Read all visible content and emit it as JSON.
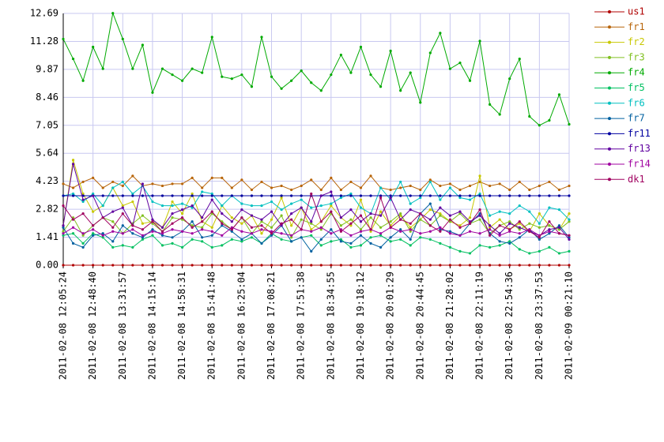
{
  "chart_data": {
    "type": "line",
    "grid": true,
    "legend": "right",
    "markers": true,
    "categories": [
      "2011-02-08 12:05:24",
      null,
      null,
      "2011-02-08 12:48:40",
      null,
      null,
      "2011-02-08 13:31:57",
      null,
      null,
      "2011-02-08 14:15:14",
      null,
      null,
      "2011-02-08 14:58:31",
      null,
      null,
      "2011-02-08 15:41:48",
      null,
      null,
      "2011-02-08 16:25:04",
      null,
      null,
      "2011-02-08 17:08:21",
      null,
      null,
      "2011-02-08 17:51:38",
      null,
      null,
      "2011-02-08 18:34:55",
      null,
      null,
      "2011-02-08 19:18:12",
      null,
      null,
      "2011-02-08 20:01:29",
      null,
      null,
      "2011-02-08 20:44:45",
      null,
      null,
      "2011-02-08 21:28:02",
      null,
      null,
      "2011-02-08 22:11:19",
      null,
      null,
      "2011-02-08 22:54:36",
      null,
      null,
      "2011-02-08 23:37:53",
      null,
      null,
      "2011-02-09 00:21:10"
    ],
    "ylim": [
      0,
      12.69
    ],
    "yticks": [
      {
        "value": 0,
        "label": "0.00"
      },
      1.41,
      2.82,
      4.23,
      5.64,
      7.05,
      8.46,
      9.87,
      11.28,
      12.69
    ],
    "series": [
      {
        "name": "us1",
        "color": "#b00000",
        "values": [
          0,
          0,
          0,
          0,
          0,
          0,
          0,
          0,
          0,
          0,
          0,
          0,
          0,
          0,
          0,
          0,
          0,
          0,
          0,
          0,
          0,
          0,
          0,
          0,
          0,
          0,
          0,
          0,
          0,
          0,
          0,
          0,
          0,
          0,
          0,
          0,
          0,
          0,
          0,
          0,
          0,
          0,
          0,
          0,
          0,
          0,
          0,
          0,
          0,
          0,
          0,
          0
        ]
      },
      {
        "name": "fr1",
        "color": "#b8650a",
        "values": [
          4.1,
          3.9,
          4.2,
          4.4,
          3.9,
          4.2,
          4.0,
          4.5,
          4.0,
          4.1,
          4.0,
          4.1,
          4.1,
          4.4,
          3.9,
          4.4,
          4.4,
          3.9,
          4.3,
          3.8,
          4.2,
          3.9,
          4.0,
          3.8,
          4.0,
          4.3,
          3.8,
          4.4,
          3.8,
          4.2,
          3.9,
          4.5,
          3.9,
          3.8,
          3.9,
          4.0,
          3.8,
          4.3,
          4.0,
          4.1,
          3.8,
          4.0,
          4.2,
          4.0,
          4.1,
          3.8,
          4.2,
          3.8,
          4.0,
          4.2,
          3.8,
          4.0
        ]
      },
      {
        "name": "fr2",
        "color": "#c8c800",
        "values": [
          2.0,
          5.3,
          3.6,
          2.7,
          3.0,
          3.9,
          3.0,
          3.2,
          2.1,
          2.2,
          1.9,
          3.2,
          2.6,
          3.6,
          2.2,
          1.9,
          3.0,
          2.4,
          2.1,
          2.5,
          1.6,
          2.3,
          3.4,
          2.0,
          2.9,
          1.8,
          2.2,
          3.0,
          2.4,
          2.0,
          3.3,
          1.7,
          2.7,
          2.0,
          2.5,
          1.9,
          2.3,
          2.8,
          2.6,
          2.2,
          2.0,
          2.4,
          4.5,
          1.9,
          2.3,
          1.8,
          2.1,
          1.7,
          2.6,
          2.0,
          1.8,
          2.6
        ]
      },
      {
        "name": "fr3",
        "color": "#80c020",
        "values": [
          1.7,
          2.4,
          1.5,
          2.0,
          2.4,
          2.2,
          1.6,
          2.1,
          2.5,
          2.1,
          1.7,
          2.4,
          2.3,
          2.0,
          1.9,
          2.6,
          2.2,
          1.8,
          2.4,
          1.6,
          2.2,
          1.9,
          2.5,
          1.4,
          2.3,
          2.1,
          1.8,
          2.6,
          2.0,
          2.3,
          1.8,
          2.4,
          1.9,
          2.2,
          2.6,
          1.7,
          2.3,
          2.0,
          2.5,
          2.2,
          2.6,
          2.1,
          2.3,
          1.6,
          2.0,
          2.2,
          1.8,
          2.1,
          1.9,
          2.0,
          1.8,
          2.2
        ]
      },
      {
        "name": "fr4",
        "color": "#00aa00",
        "values": [
          11.4,
          10.4,
          9.3,
          11.0,
          9.9,
          12.7,
          11.4,
          9.9,
          11.1,
          8.7,
          9.9,
          9.6,
          9.3,
          9.9,
          9.7,
          11.5,
          9.5,
          9.4,
          9.6,
          9.0,
          11.5,
          9.5,
          8.9,
          9.3,
          9.8,
          9.2,
          8.8,
          9.6,
          10.6,
          9.7,
          11.0,
          9.6,
          9.0,
          10.8,
          8.8,
          9.7,
          8.2,
          10.7,
          11.7,
          9.9,
          10.2,
          9.3,
          11.3,
          8.1,
          7.6,
          9.4,
          10.4,
          7.5,
          7.05,
          7.3,
          8.6,
          7.1
        ]
      },
      {
        "name": "fr5",
        "color": "#00c060",
        "values": [
          1.5,
          1.6,
          1.1,
          1.6,
          1.4,
          0.9,
          1.0,
          0.9,
          1.3,
          1.5,
          1.0,
          1.1,
          0.9,
          1.3,
          1.2,
          0.9,
          1.0,
          1.3,
          1.2,
          1.4,
          1.1,
          1.6,
          1.3,
          1.2,
          1.4,
          1.5,
          1.0,
          1.2,
          1.3,
          0.9,
          1.0,
          1.4,
          1.5,
          1.2,
          1.3,
          1.0,
          1.4,
          1.3,
          1.1,
          0.9,
          0.7,
          0.6,
          1.0,
          0.9,
          1.0,
          1.2,
          0.8,
          0.6,
          0.7,
          0.9,
          0.6,
          0.7
        ]
      },
      {
        "name": "fr6",
        "color": "#00c0c0",
        "values": [
          3.5,
          3.6,
          3.2,
          3.6,
          3.0,
          3.9,
          4.2,
          3.6,
          4.0,
          3.2,
          3.0,
          3.0,
          3.1,
          2.9,
          3.7,
          3.6,
          3.0,
          3.5,
          3.1,
          3.0,
          3.0,
          3.2,
          2.8,
          3.1,
          3.3,
          2.9,
          3.0,
          3.1,
          3.4,
          3.6,
          2.9,
          2.6,
          3.9,
          3.3,
          4.2,
          3.1,
          3.4,
          4.2,
          3.3,
          3.9,
          3.4,
          3.3,
          3.6,
          2.5,
          2.7,
          2.6,
          3.0,
          2.7,
          2.1,
          2.9,
          2.8,
          2.3
        ]
      },
      {
        "name": "fr7",
        "color": "#0060a0",
        "values": [
          1.9,
          1.1,
          0.9,
          1.5,
          1.6,
          1.2,
          2.0,
          1.6,
          1.4,
          1.8,
          1.5,
          1.4,
          1.7,
          2.2,
          1.4,
          1.5,
          2.0,
          1.7,
          1.3,
          1.6,
          1.1,
          1.5,
          2.0,
          1.2,
          1.4,
          0.7,
          1.3,
          1.8,
          1.2,
          1.1,
          1.5,
          1.1,
          0.9,
          1.4,
          1.8,
          1.3,
          2.6,
          3.1,
          1.8,
          1.7,
          1.5,
          2.1,
          2.6,
          1.6,
          1.2,
          1.1,
          1.4,
          1.8,
          1.3,
          1.6,
          2.0,
          1.4
        ]
      },
      {
        "name": "fr11",
        "color": "#0000a0",
        "values": [
          3.5,
          3.5,
          3.5,
          3.5,
          3.5,
          3.5,
          3.5,
          3.5,
          3.5,
          3.5,
          3.5,
          3.5,
          3.5,
          3.5,
          3.5,
          3.5,
          3.5,
          3.5,
          3.5,
          3.5,
          3.5,
          3.5,
          3.5,
          3.5,
          3.5,
          3.5,
          3.5,
          3.5,
          3.5,
          3.5,
          3.5,
          3.5,
          3.5,
          3.5,
          3.5,
          3.5,
          3.5,
          3.5,
          3.5,
          3.5,
          3.5,
          3.5,
          3.5,
          3.5,
          3.5,
          3.5,
          3.5,
          3.5,
          3.5,
          3.5,
          3.5,
          3.5
        ]
      },
      {
        "name": "fr13",
        "color": "#6000a0",
        "values": [
          2.0,
          5.1,
          3.3,
          3.5,
          2.4,
          2.7,
          2.9,
          2.0,
          4.1,
          2.3,
          1.9,
          2.6,
          2.8,
          3.0,
          2.4,
          3.3,
          2.6,
          2.2,
          2.8,
          2.5,
          2.3,
          2.7,
          2.0,
          2.6,
          2.9,
          2.2,
          3.5,
          3.7,
          2.4,
          2.8,
          2.2,
          2.6,
          2.5,
          3.4,
          2.3,
          2.8,
          2.6,
          2.3,
          2.9,
          2.5,
          2.7,
          2.2,
          2.5,
          2.0,
          1.6,
          2.1,
          1.9,
          1.7,
          1.5,
          1.8,
          1.9,
          1.3
        ]
      },
      {
        "name": "fr14",
        "color": "#a000a0",
        "values": [
          1.6,
          1.9,
          1.6,
          1.8,
          1.5,
          1.7,
          1.6,
          1.8,
          1.5,
          1.7,
          1.6,
          1.8,
          1.7,
          1.6,
          1.8,
          1.7,
          1.5,
          1.9,
          1.7,
          1.6,
          1.8,
          1.7,
          1.6,
          1.5,
          1.8,
          1.7,
          1.9,
          1.6,
          1.8,
          1.5,
          1.7,
          1.8,
          1.6,
          1.9,
          1.7,
          1.8,
          1.6,
          1.7,
          1.9,
          1.6,
          1.5,
          1.7,
          1.6,
          1.8,
          1.5,
          1.7,
          1.6,
          1.8,
          1.5,
          1.7,
          1.6,
          1.5
        ]
      },
      {
        "name": "dk1",
        "color": "#a00060",
        "values": [
          3.0,
          2.3,
          2.6,
          2.0,
          2.4,
          1.9,
          2.6,
          2.0,
          1.8,
          2.2,
          1.7,
          2.1,
          2.4,
          1.9,
          2.2,
          2.7,
          2.1,
          1.8,
          2.4,
          1.9,
          2.0,
          1.6,
          2.1,
          2.3,
          1.8,
          3.6,
          2.2,
          2.7,
          1.7,
          2.1,
          2.5,
          1.8,
          3.4,
          1.9,
          2.3,
          2.1,
          2.6,
          2.0,
          1.7,
          2.3,
          1.9,
          2.1,
          2.8,
          1.5,
          2.0,
          1.8,
          2.2,
          1.7,
          1.4,
          2.2,
          1.6,
          1.5
        ]
      }
    ]
  }
}
